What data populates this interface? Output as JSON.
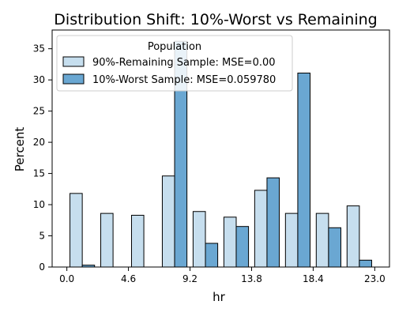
{
  "chart_data": {
    "type": "bar",
    "title": "Distribution Shift: 10%-Worst vs Remaining",
    "xlabel": "hr",
    "ylabel": "Percent",
    "xlim": [
      -1.1,
      24.1
    ],
    "ylim": [
      0,
      38
    ],
    "x_ticks": [
      0.0,
      4.6,
      9.2,
      13.8,
      18.4,
      23.0
    ],
    "x_tick_labels": [
      "0.0",
      "4.6",
      "9.2",
      "13.8",
      "18.4",
      "23.0"
    ],
    "y_ticks": [
      0,
      5,
      10,
      15,
      20,
      25,
      30,
      35
    ],
    "y_tick_labels": [
      "0",
      "5",
      "10",
      "15",
      "20",
      "25",
      "30",
      "35"
    ],
    "bin_width": 2.3,
    "bin_starts": [
      0.0,
      2.3,
      4.6,
      6.9,
      9.2,
      11.5,
      13.8,
      16.1,
      18.4,
      20.7
    ],
    "grid": false,
    "legend": {
      "title": "Population",
      "placement": "upper-left"
    },
    "series": [
      {
        "name": "90%-Remaining Sample: MSE=0.00",
        "color": "#c6deee",
        "values": [
          11.8,
          8.6,
          8.3,
          14.6,
          8.9,
          8.0,
          12.3,
          8.6,
          8.6,
          9.8
        ]
      },
      {
        "name": "10%-Worst Sample: MSE=0.059780",
        "color": "#6aa7d2",
        "values": [
          0.3,
          0.0,
          0.0,
          36.2,
          3.8,
          6.5,
          14.3,
          31.1,
          6.3,
          1.1
        ]
      }
    ]
  }
}
